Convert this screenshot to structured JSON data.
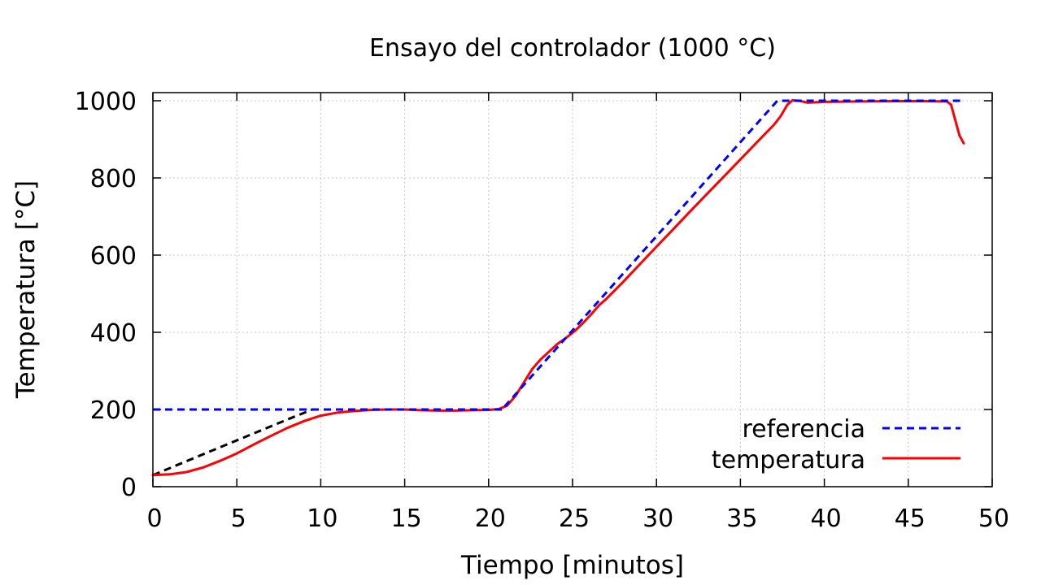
{
  "chart_data": {
    "type": "line",
    "title": "Ensayo del controlador (1000 °C)",
    "xlabel": "Tiempo [minutos]",
    "ylabel": "Temperatura [°C]",
    "xlim": [
      0,
      50
    ],
    "ylim": [
      0,
      1000
    ],
    "xticks": [
      0,
      5,
      10,
      15,
      20,
      25,
      30,
      35,
      40,
      45,
      50
    ],
    "yticks": [
      0,
      200,
      400,
      600,
      800,
      1000
    ],
    "grid": true,
    "legend_position": "bottom-right",
    "series": [
      {
        "name": "referencia",
        "color": "#0000ff",
        "dash": "dashed",
        "x": [
          0,
          8.8,
          9.5,
          20.9,
          21.0,
          37.2,
          48.3
        ],
        "y": [
          200,
          200,
          200,
          200,
          210,
          1000,
          1000
        ]
      },
      {
        "name": "",
        "color": "#000000",
        "dash": "dashed",
        "x": [
          0,
          2,
          4,
          6,
          8,
          9.5
        ],
        "y": [
          30,
          66,
          102,
          138,
          174,
          200
        ]
      },
      {
        "name": "temperatura",
        "color": "#ff0000",
        "dash": "solid",
        "x": [
          0,
          1,
          2,
          3,
          4,
          5,
          6,
          7,
          8,
          9,
          10,
          11,
          12,
          13,
          14,
          15,
          16,
          17,
          18,
          19,
          20,
          20.6,
          21.1,
          21.6,
          22.1,
          22.6,
          23.1,
          23.6,
          24.1,
          24.6,
          25.1,
          25.6,
          26.1,
          26.6,
          27,
          28,
          29,
          30,
          31,
          32,
          33,
          34,
          35,
          36,
          37,
          37.4,
          37.8,
          38.1,
          38.5,
          39,
          40,
          42,
          44,
          46,
          47.3,
          47.55,
          47.8,
          48.05,
          48.3
        ],
        "y": [
          30,
          32,
          38,
          50,
          67,
          86,
          109,
          131,
          152,
          170,
          184,
          192,
          196,
          199,
          200,
          200,
          198,
          197,
          197,
          198,
          199,
          201,
          210,
          235,
          270,
          305,
          330,
          350,
          370,
          385,
          402,
          423,
          446,
          471,
          486,
          530,
          576,
          622,
          667,
          713,
          758,
          803,
          848,
          893,
          938,
          960,
          990,
          1001,
          1000,
          995,
          997,
          998,
          999,
          999,
          998,
          990,
          950,
          910,
          890
        ]
      }
    ]
  }
}
